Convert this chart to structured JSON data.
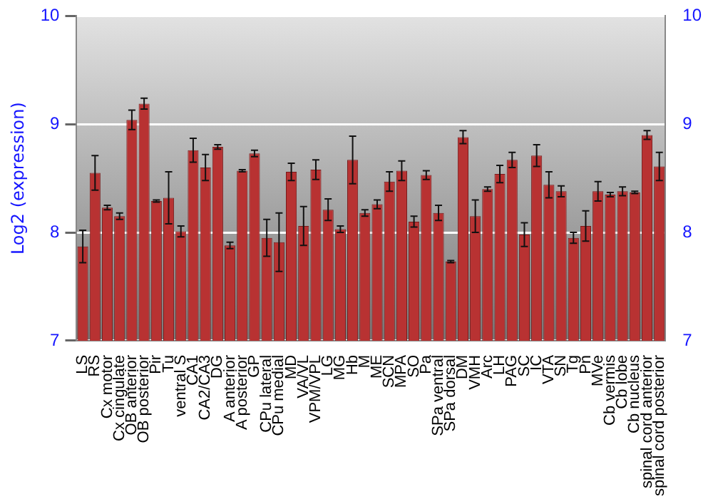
{
  "chart_data": {
    "type": "bar",
    "ylabel": "Log2 (expression)",
    "categories": [
      "LS",
      "RS",
      "Cx motor",
      "Cx cingulate",
      "OB anterior",
      "OB posterior",
      "Pir",
      "Tu",
      "ventral S",
      "CA1",
      "CA2/CA3",
      "DG",
      "A anterior",
      "A posterior",
      "GP",
      "CPu lateral",
      "CPu medial",
      "MD",
      "VA/VL",
      "VPM/VPL",
      "LG",
      "MG",
      "Hb",
      "M",
      "ME",
      "SCN",
      "MPA",
      "SO",
      "Pa",
      "SPa ventral",
      "SPa dorsal",
      "DM",
      "VMH",
      "Arc",
      "LH",
      "PAG",
      "SC",
      "IC",
      "VTA",
      "SN",
      "Tg",
      "Pn",
      "MVe",
      "Cb vermis",
      "Cb lobe",
      "Cb nucleus",
      "spinal cord anterior",
      "spinal cord posterior"
    ],
    "values": [
      7.87,
      8.55,
      8.23,
      8.15,
      9.04,
      9.19,
      8.29,
      8.32,
      8.01,
      8.76,
      8.6,
      8.79,
      7.88,
      8.57,
      8.73,
      7.95,
      7.91,
      8.56,
      8.06,
      8.58,
      8.21,
      8.03,
      8.67,
      8.18,
      8.26,
      8.47,
      8.57,
      8.1,
      8.53,
      8.18,
      7.73,
      8.88,
      8.15,
      8.4,
      8.54,
      8.67,
      7.98,
      8.71,
      8.44,
      8.38,
      7.95,
      8.06,
      8.38,
      8.35,
      8.38,
      8.37,
      8.9,
      8.61
    ],
    "errors": [
      0.15,
      0.16,
      0.02,
      0.03,
      0.09,
      0.05,
      0.01,
      0.24,
      0.05,
      0.11,
      0.12,
      0.02,
      0.03,
      0.01,
      0.03,
      0.17,
      0.27,
      0.08,
      0.18,
      0.09,
      0.1,
      0.03,
      0.22,
      0.03,
      0.04,
      0.09,
      0.09,
      0.05,
      0.04,
      0.07,
      0.01,
      0.06,
      0.15,
      0.02,
      0.08,
      0.07,
      0.11,
      0.1,
      0.12,
      0.05,
      0.05,
      0.14,
      0.09,
      0.02,
      0.04,
      0.01,
      0.04,
      0.13
    ],
    "color": "#b83232",
    "ylim": [
      7,
      10
    ],
    "yticks": [
      7,
      8,
      9,
      10
    ],
    "y2lim": [
      7,
      10
    ],
    "y2ticks": [
      7,
      8,
      9,
      10
    ],
    "grid": "y",
    "legend": false
  }
}
